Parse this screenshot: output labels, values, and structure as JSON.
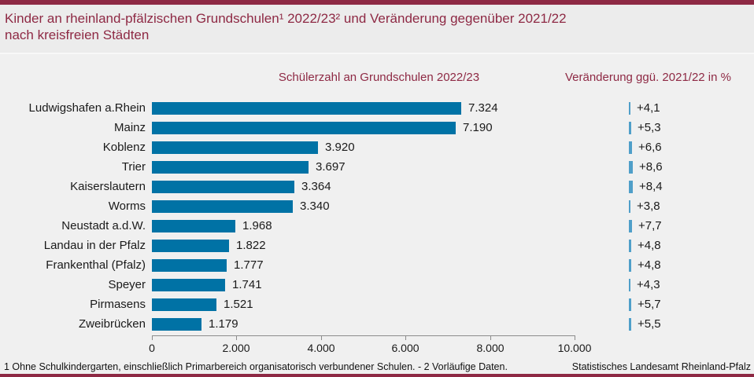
{
  "title": {
    "line1": "Kinder an rheinland-pfälzischen Grundschulen¹ 2022/23² und Veränderung gegenüber 2021/22",
    "line2": "nach kreisfreien Städten"
  },
  "headers": {
    "left": "Schülerzahl an Grundschulen 2022/23",
    "right": "Veränderung ggü. 2021/22 in %"
  },
  "footer": {
    "footnote": "1 Ohne Schulkindergarten, einschließlich Primarbereich organisatorisch verbundener Schulen.  - 2 Vorläufige Daten.",
    "source": "Statistisches Landesamt Rheinland-Pfalz"
  },
  "colors": {
    "accent_maroon": "#8e2944",
    "bar_blue": "#0072a5",
    "mini_bar_blue": "#4f9fc9",
    "axis_gray": "#8c8c8c",
    "background": "#f0f0f0"
  },
  "chart_data": {
    "type": "bar",
    "orientation": "horizontal",
    "title": "Kinder an rheinland-pfälzischen Grundschulen 2022/23 und Veränderung gegenüber 2021/22 nach kreisfreien Städten",
    "categories": [
      "Ludwigshafen a.Rhein",
      "Mainz",
      "Koblenz",
      "Trier",
      "Kaiserslautern",
      "Worms",
      "Neustadt a.d.W.",
      "Landau in der Pfalz",
      "Frankenthal (Pfalz)",
      "Speyer",
      "Pirmasens",
      "Zweibrücken"
    ],
    "series": [
      {
        "name": "Schülerzahl an Grundschulen 2022/23",
        "values": [
          7324,
          7190,
          3920,
          3697,
          3364,
          3340,
          1968,
          1822,
          1777,
          1741,
          1521,
          1179
        ],
        "labels": [
          "7.324",
          "7.190",
          "3.920",
          "3.697",
          "3.364",
          "3.340",
          "1.968",
          "1.822",
          "1.777",
          "1.741",
          "1.521",
          "1.179"
        ]
      },
      {
        "name": "Veränderung ggü. 2021/22 in %",
        "values": [
          4.1,
          5.3,
          6.6,
          8.6,
          8.4,
          3.8,
          7.7,
          4.8,
          4.8,
          4.3,
          5.7,
          5.5
        ],
        "labels": [
          "+4,1",
          "+5,3",
          "+6,6",
          "+8,6",
          "+8,4",
          "+3,8",
          "+7,7",
          "+4,8",
          "+4,8",
          "+4,3",
          "+5,7",
          "+5,5"
        ]
      }
    ],
    "xlim": [
      0,
      10000
    ],
    "x_tick_values": [
      0,
      2000,
      4000,
      6000,
      8000,
      10000
    ],
    "x_tick_labels": [
      "0",
      "2.000",
      "4.000",
      "6.000",
      "8.000",
      "10.000"
    ],
    "grid": false,
    "legend_position": "none"
  }
}
